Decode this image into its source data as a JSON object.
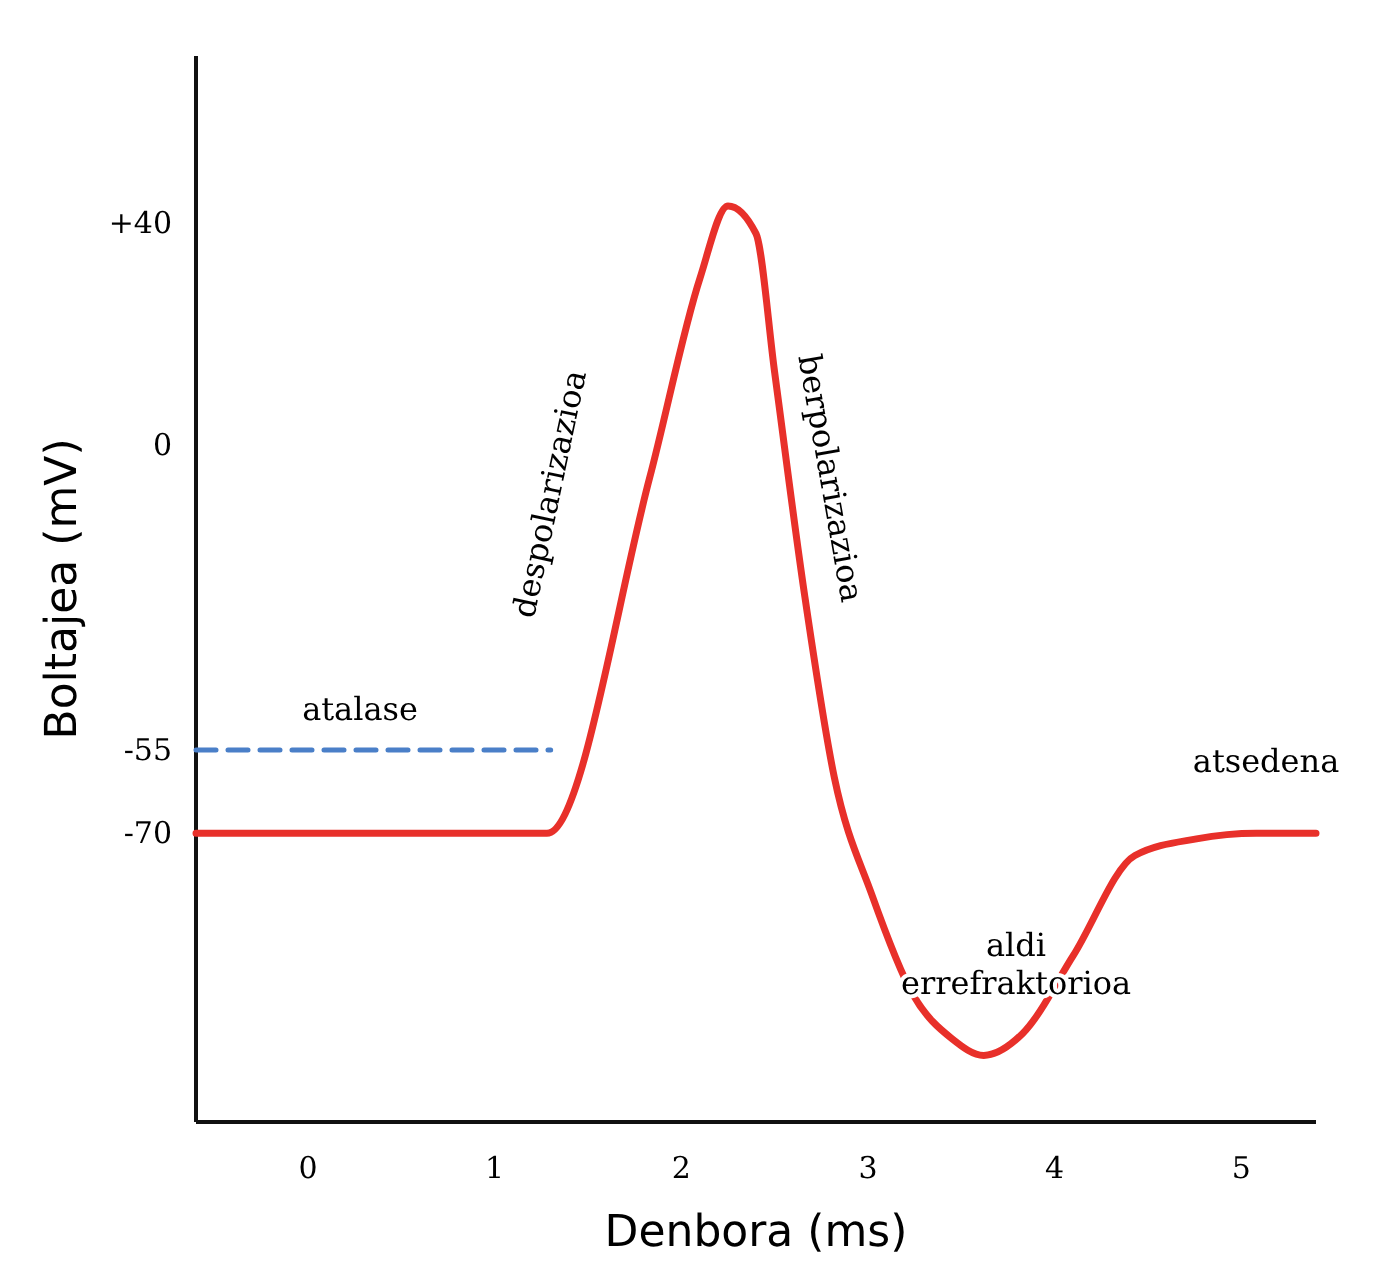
{
  "chart_data": {
    "type": "line",
    "xlabel": "Denbora (ms)",
    "ylabel": "Boltajea (mV)",
    "xlim": [
      -0.6,
      5.4
    ],
    "ylim": [
      -122,
      70
    ],
    "xticks": [
      0,
      1,
      2,
      3,
      4,
      5
    ],
    "yticks": [
      {
        "value": 40,
        "label": "+40"
      },
      0,
      -55,
      -70
    ],
    "grid": false,
    "series": [
      {
        "color": "#e8302a",
        "line_style": "solid",
        "x": [
          -0.6,
          1.28,
          1.83,
          2.1,
          2.25,
          2.4,
          2.5,
          2.66,
          2.82,
          3.02,
          3.24,
          3.45,
          3.62,
          3.83,
          4.1,
          4.43,
          4.76,
          5.08,
          5.4
        ],
        "values": [
          -70,
          -70,
          -6,
          30,
          43,
          38,
          13,
          -27,
          -60,
          -81,
          -99,
          -107,
          -110,
          -106,
          -92,
          -74,
          -71,
          -70,
          -70
        ]
      },
      {
        "color": "#4a7fc8",
        "line_style": "dashed",
        "x": [
          -0.6,
          1.3
        ],
        "values": [
          -55,
          -55
        ]
      }
    ],
    "annotations": [
      "atalase",
      "despolarizazioa",
      "berpolarizazioa",
      "aldi\nerrefraktorioa",
      "atsedena"
    ]
  }
}
